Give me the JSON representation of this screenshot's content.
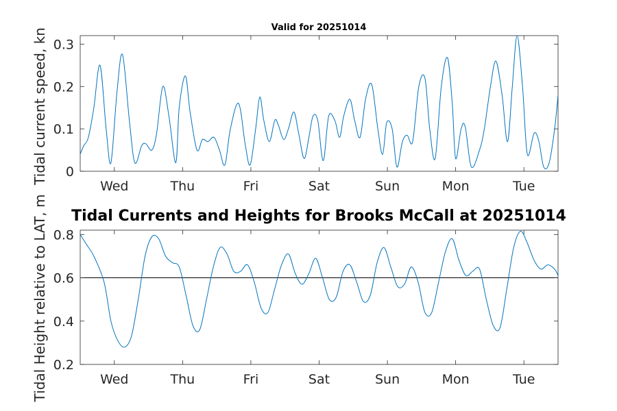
{
  "chart_data": [
    {
      "type": "line",
      "title": "Valid for 20251014",
      "ylabel": "Tidal current speed, kn",
      "xlim": [
        0,
        7
      ],
      "ylim": [
        0,
        0.32
      ],
      "yticks": [
        0,
        0.1,
        0.2,
        0.3
      ],
      "xticks": [
        0.5,
        1.5,
        2.5,
        3.5,
        4.5,
        5.5,
        6.5
      ],
      "xtick_labels": [
        "Wed",
        "Thu",
        "Fri",
        "Sat",
        "Sun",
        "Mon",
        "Tue"
      ],
      "grid": false,
      "color": "#0072BD",
      "series": [
        {
          "x": [
            0,
            0.05,
            0.12,
            0.2,
            0.29,
            0.38,
            0.45,
            0.54,
            0.62,
            0.72,
            0.8,
            0.9,
            0.96,
            1.05,
            1.12,
            1.21,
            1.3,
            1.4,
            1.45,
            1.54,
            1.61,
            1.71,
            1.79,
            1.87,
            1.96,
            2.04,
            2.12,
            2.2,
            2.32,
            2.42,
            2.49,
            2.57,
            2.63,
            2.69,
            2.77,
            2.85,
            2.9,
            2.98,
            3.05,
            3.13,
            3.2,
            3.28,
            3.35,
            3.41,
            3.48,
            3.56,
            3.64,
            3.73,
            3.8,
            3.86,
            3.95,
            4.02,
            4.1,
            4.18,
            4.27,
            4.36,
            4.43,
            4.49,
            4.57,
            4.64,
            4.72,
            4.79,
            4.87,
            4.96,
            5.05,
            5.12,
            5.2,
            5.29,
            5.38,
            5.45,
            5.5,
            5.58,
            5.64,
            5.73,
            5.85,
            5.92,
            6.01,
            6.09,
            6.18,
            6.26,
            6.33,
            6.4,
            6.48,
            6.55,
            6.65,
            6.72,
            6.79,
            6.87,
            6.95,
            7.0
          ],
          "y": [
            0.04,
            0.06,
            0.08,
            0.15,
            0.25,
            0.1,
            0.02,
            0.19,
            0.275,
            0.12,
            0.02,
            0.06,
            0.065,
            0.05,
            0.09,
            0.2,
            0.13,
            0.02,
            0.15,
            0.225,
            0.14,
            0.05,
            0.075,
            0.07,
            0.08,
            0.05,
            0.015,
            0.1,
            0.16,
            0.06,
            0.015,
            0.1,
            0.175,
            0.12,
            0.07,
            0.12,
            0.11,
            0.075,
            0.1,
            0.14,
            0.09,
            0.03,
            0.08,
            0.13,
            0.12,
            0.025,
            0.13,
            0.12,
            0.08,
            0.13,
            0.17,
            0.12,
            0.08,
            0.17,
            0.205,
            0.1,
            0.04,
            0.115,
            0.1,
            0.01,
            0.07,
            0.085,
            0.07,
            0.2,
            0.22,
            0.1,
            0.03,
            0.2,
            0.268,
            0.16,
            0.03,
            0.1,
            0.105,
            0.01,
            0.05,
            0.1,
            0.2,
            0.26,
            0.18,
            0.07,
            0.2,
            0.32,
            0.2,
            0.04,
            0.09,
            0.07,
            0.01,
            0.02,
            0.1,
            0.18
          ]
        }
      ]
    },
    {
      "type": "line",
      "title": "Tidal Currents and Heights for Brooks McCall at 20251014",
      "ylabel": "Tidal Height relative to LAT, m",
      "xlim": [
        0,
        7
      ],
      "ylim": [
        0.2,
        0.82
      ],
      "yticks": [
        0.2,
        0.4,
        0.6,
        0.8
      ],
      "xticks": [
        0.5,
        1.5,
        2.5,
        3.5,
        4.5,
        5.5,
        6.5
      ],
      "xtick_labels": [
        "Wed",
        "Thu",
        "Fri",
        "Sat",
        "Sun",
        "Mon",
        "Tue"
      ],
      "grid": false,
      "reference_line": 0.6,
      "color": "#0072BD",
      "series": [
        {
          "x": [
            0,
            0.1,
            0.2,
            0.35,
            0.45,
            0.55,
            0.65,
            0.75,
            0.85,
            0.95,
            1.05,
            1.15,
            1.25,
            1.35,
            1.45,
            1.55,
            1.65,
            1.75,
            1.85,
            1.95,
            2.05,
            2.15,
            2.25,
            2.35,
            2.45,
            2.55,
            2.65,
            2.75,
            2.85,
            2.95,
            3.05,
            3.15,
            3.25,
            3.35,
            3.45,
            3.55,
            3.65,
            3.75,
            3.85,
            3.95,
            4.05,
            4.15,
            4.25,
            4.35,
            4.45,
            4.55,
            4.65,
            4.75,
            4.85,
            4.95,
            5.05,
            5.15,
            5.25,
            5.35,
            5.45,
            5.55,
            5.65,
            5.75,
            5.85,
            5.95,
            6.05,
            6.15,
            6.25,
            6.35,
            6.45,
            6.55,
            6.65,
            6.75,
            6.85,
            6.95,
            7.0
          ],
          "y": [
            0.8,
            0.75,
            0.7,
            0.58,
            0.4,
            0.31,
            0.28,
            0.33,
            0.5,
            0.7,
            0.79,
            0.78,
            0.7,
            0.67,
            0.65,
            0.52,
            0.38,
            0.36,
            0.5,
            0.65,
            0.74,
            0.71,
            0.63,
            0.63,
            0.66,
            0.58,
            0.46,
            0.44,
            0.55,
            0.66,
            0.71,
            0.62,
            0.57,
            0.62,
            0.69,
            0.6,
            0.5,
            0.51,
            0.63,
            0.66,
            0.58,
            0.49,
            0.52,
            0.67,
            0.74,
            0.65,
            0.56,
            0.57,
            0.65,
            0.58,
            0.44,
            0.44,
            0.58,
            0.72,
            0.78,
            0.68,
            0.61,
            0.63,
            0.64,
            0.5,
            0.38,
            0.37,
            0.55,
            0.74,
            0.815,
            0.76,
            0.68,
            0.64,
            0.66,
            0.64,
            0.61
          ]
        }
      ]
    }
  ]
}
